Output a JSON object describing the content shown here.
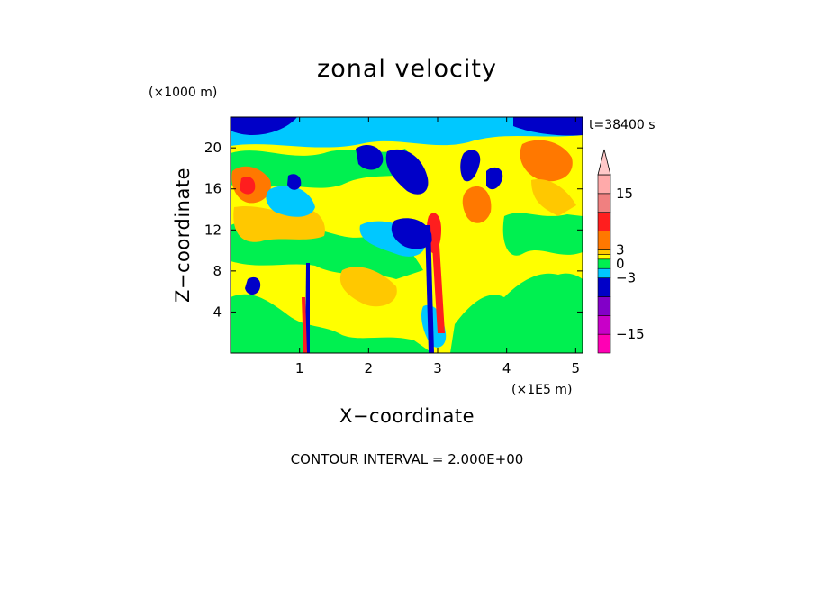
{
  "chart_data": {
    "type": "heatmap",
    "title": "zonal velocity",
    "xlabel": "X−coordinate",
    "ylabel": "Z−coordinate",
    "x_units": "(×1E5 m)",
    "y_units": "(×1000 m)",
    "time_label": "t=38400 s",
    "contour_note": "CONTOUR INTERVAL = 2.000E+00",
    "xlim": [
      0,
      5.1
    ],
    "ylim": [
      0,
      23
    ],
    "x_ticks": [
      1,
      2,
      3,
      4,
      5
    ],
    "y_ticks": [
      4,
      8,
      12,
      16,
      20
    ],
    "x_tick_labels": [
      "1",
      "2",
      "3",
      "4",
      "5"
    ],
    "y_tick_labels": [
      "4",
      "8",
      "12",
      "16",
      "20"
    ],
    "colorbar": {
      "min": -19,
      "max": 19,
      "arrow_top": true,
      "levels": [
        {
          "from": -19,
          "to": -15,
          "color": "#ff00b4"
        },
        {
          "from": -15,
          "to": -11,
          "color": "#c800c8"
        },
        {
          "from": -11,
          "to": -7,
          "color": "#8200c8"
        },
        {
          "from": -7,
          "to": -3,
          "color": "#0000c8"
        },
        {
          "from": -3,
          "to": -1,
          "color": "#00c8ff"
        },
        {
          "from": -1,
          "to": 1,
          "color": "#00f050"
        },
        {
          "from": 1,
          "to": 2,
          "color": "#ffff00"
        },
        {
          "from": 2,
          "to": 3,
          "color": "#ffc800"
        },
        {
          "from": 3,
          "to": 7,
          "color": "#ff7800"
        },
        {
          "from": 7,
          "to": 11,
          "color": "#ff1e1e"
        },
        {
          "from": 11,
          "to": 15,
          "color": "#f08080"
        },
        {
          "from": 15,
          "to": 19,
          "color": "#ffaaaa"
        }
      ],
      "arrow_color": "#ffc8c8",
      "tick_values": [
        15,
        3,
        0,
        -3,
        -15
      ],
      "tick_labels": [
        "15",
        "3",
        "0",
        "−3",
        "−15"
      ]
    }
  }
}
